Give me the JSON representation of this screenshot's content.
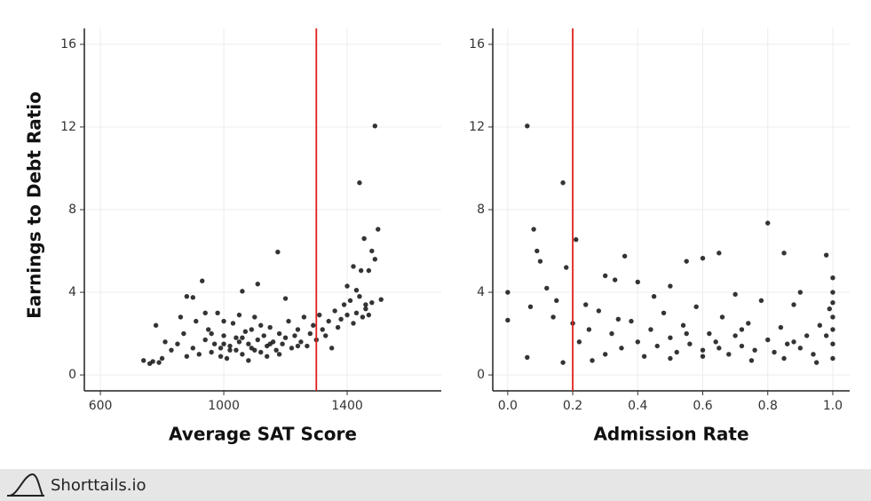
{
  "chart_data": [
    {
      "type": "scatter",
      "xlabel": "Average SAT Score",
      "ylabel": "Earnings to Debt Ratio",
      "xlim": [
        548,
        1705
      ],
      "ylim": [
        -0.77,
        16.77
      ],
      "xticks": [
        600,
        1000,
        1400
      ],
      "yticks": [
        0,
        4,
        8,
        12,
        16
      ],
      "grid": true,
      "color": "#111111",
      "vline": 1300,
      "vline_color": "#e0201b",
      "x": [
        1490,
        1440,
        1500,
        1455,
        1480,
        1175,
        1420,
        1445,
        1470,
        1490,
        930,
        1110,
        880,
        900,
        1510,
        1400,
        1430,
        1460,
        1060,
        1200,
        740,
        760,
        770,
        790,
        800,
        780,
        810,
        830,
        850,
        870,
        880,
        900,
        910,
        920,
        940,
        950,
        960,
        970,
        980,
        990,
        1000,
        1010,
        1020,
        1030,
        1040,
        1050,
        1060,
        1070,
        1080,
        1090,
        1100,
        1110,
        1120,
        1130,
        1140,
        1150,
        1160,
        1170,
        1180,
        1190,
        1200,
        1210,
        1220,
        1230,
        1240,
        1250,
        1260,
        1270,
        1280,
        1290,
        1300,
        1310,
        1320,
        1330,
        1340,
        1350,
        1360,
        1370,
        1380,
        1390,
        1400,
        1410,
        1420,
        1430,
        1440,
        1450,
        1460,
        1470,
        1480,
        940,
        1000,
        1050,
        1120,
        860,
        990,
        1080,
        1140,
        960,
        1020,
        1060,
        1100,
        1180,
        1240,
        1000,
        1040,
        1090,
        1150
      ],
      "y": [
        12.05,
        9.3,
        7.05,
        6.6,
        6.0,
        5.95,
        5.25,
        5.05,
        5.05,
        5.6,
        4.55,
        4.4,
        3.8,
        3.75,
        3.65,
        4.3,
        4.1,
        3.4,
        4.05,
        3.7,
        0.7,
        0.55,
        0.65,
        0.6,
        0.8,
        2.4,
        1.6,
        1.2,
        1.5,
        2.0,
        0.9,
        1.3,
        2.6,
        1.0,
        1.7,
        2.2,
        1.1,
        1.5,
        3.0,
        1.3,
        1.9,
        0.8,
        1.4,
        2.5,
        1.2,
        1.6,
        1.0,
        2.1,
        1.5,
        1.3,
        2.8,
        1.7,
        1.1,
        1.9,
        1.4,
        2.3,
        1.6,
        1.2,
        2.0,
        1.5,
        1.8,
        2.6,
        1.3,
        1.9,
        2.2,
        1.6,
        2.8,
        1.4,
        2.0,
        2.4,
        1.7,
        2.9,
        2.2,
        1.9,
        2.6,
        1.3,
        3.1,
        2.3,
        2.7,
        3.4,
        2.9,
        3.6,
        2.5,
        3.0,
        3.8,
        2.8,
        3.2,
        2.9,
        3.5,
        3.0,
        2.6,
        2.9,
        2.4,
        2.8,
        0.9,
        0.7,
        0.9,
        2.0,
        1.2,
        1.8,
        1.2,
        1.0,
        1.4,
        1.5,
        1.8,
        2.2,
        1.5
      ]
    },
    {
      "type": "scatter",
      "xlabel": "Admission Rate",
      "xlim": [
        -0.046,
        1.052
      ],
      "ylim": [
        -0.77,
        16.77
      ],
      "xticks": [
        {
          "value": 0,
          "label": "0.0"
        },
        0.2,
        0.4,
        0.6,
        0.8,
        {
          "value": 1,
          "label": "1.0"
        }
      ],
      "yticks": [
        0,
        4,
        8,
        12,
        16
      ],
      "grid": true,
      "color": "#111111",
      "vline": 0.2,
      "vline_color": "#e0201b",
      "x": [
        0.06,
        0.17,
        0.08,
        0.21,
        0.09,
        0.1,
        0.18,
        0.0,
        0.0,
        0.06,
        0.17,
        0.12,
        0.15,
        0.07,
        0.14,
        0.2,
        0.22,
        0.25,
        0.28,
        0.3,
        0.33,
        0.36,
        0.4,
        0.55,
        0.6,
        0.65,
        0.8,
        0.85,
        0.98,
        1.0,
        1.0,
        1.0,
        1.0,
        1.0,
        1.0,
        1.0,
        0.99,
        0.98,
        0.3,
        0.32,
        0.35,
        0.38,
        0.4,
        0.42,
        0.44,
        0.46,
        0.48,
        0.5,
        0.52,
        0.54,
        0.56,
        0.58,
        0.6,
        0.62,
        0.64,
        0.66,
        0.68,
        0.7,
        0.72,
        0.74,
        0.76,
        0.78,
        0.8,
        0.82,
        0.84,
        0.86,
        0.88,
        0.9,
        0.92,
        0.94,
        0.96,
        0.45,
        0.5,
        0.7,
        0.9,
        0.26,
        0.5,
        0.6,
        0.75,
        0.85,
        0.95,
        0.24,
        0.34,
        0.55,
        0.65,
        0.72,
        0.88
      ],
      "y": [
        12.05,
        9.3,
        7.05,
        6.55,
        6.0,
        5.5,
        5.2,
        4.0,
        2.65,
        0.85,
        0.6,
        4.2,
        3.6,
        3.3,
        2.8,
        2.5,
        1.6,
        2.2,
        3.1,
        4.8,
        4.6,
        5.75,
        4.5,
        5.5,
        5.65,
        5.9,
        7.35,
        5.9,
        5.8,
        4.7,
        4.0,
        3.5,
        2.8,
        2.2,
        1.5,
        0.8,
        3.2,
        1.9,
        1.0,
        2.0,
        1.3,
        2.6,
        1.6,
        0.9,
        2.2,
        1.4,
        3.0,
        1.8,
        1.1,
        2.4,
        1.5,
        3.3,
        1.2,
        2.0,
        1.6,
        2.8,
        1.0,
        1.9,
        1.4,
        2.5,
        1.2,
        3.6,
        1.7,
        1.1,
        2.3,
        1.5,
        3.4,
        1.3,
        1.9,
        1.0,
        2.4,
        3.8,
        4.3,
        3.9,
        4.0,
        0.7,
        0.8,
        0.9,
        0.7,
        0.8,
        0.6,
        3.4,
        2.7,
        2.0,
        1.3,
        2.2,
        1.6
      ]
    }
  ],
  "footer": {
    "brand": "Shorttails.io"
  }
}
